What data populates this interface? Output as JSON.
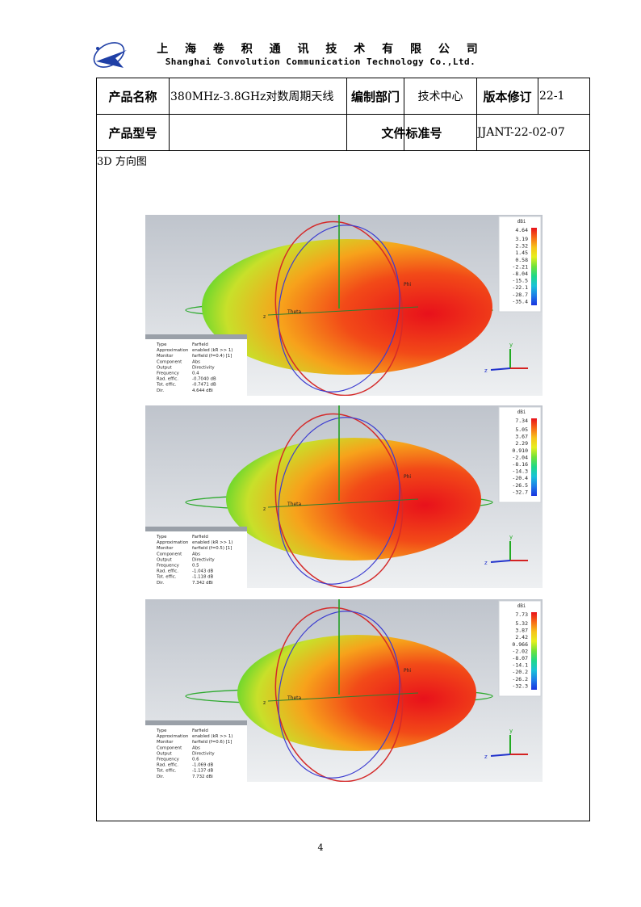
{
  "header": {
    "company_cn": "上 海 卷 积 通 讯 技 术 有 限 公 司",
    "company_en": "Shanghai Convolution Communication Technology Co.,Ltd."
  },
  "table": {
    "product_name_label": "产品名称",
    "product_name_value": "380MHz-3.8GHz对数周期天线",
    "dept_label": "编制部门",
    "dept_value": "技术中心",
    "revision_label": "版本修订",
    "revision_value": "22-1",
    "model_label": "产品型号",
    "model_value": "",
    "doc_label": "文件标准号",
    "doc_value": "JJANT-22-02-07"
  },
  "section_title": "3D 方向图",
  "panels": [
    {
      "legend_unit": "dBi",
      "legend_ticks": [
        "4.64",
        "3.19",
        "2.32",
        "1.45",
        "0.58",
        "-2.21",
        "-8.04",
        "-15.5",
        "-22.1",
        "-28.7",
        "-35.4"
      ],
      "info_labels": [
        "Type",
        "Approximation",
        "Monitor",
        "Component",
        "Output",
        "Frequency",
        "Rad. effic.",
        "Tot. effic.",
        "Dir."
      ],
      "info_values": [
        "Farfield",
        "enabled (kR >> 1)",
        "farfield (f=0.4) [1]",
        "Abs",
        "Directivity",
        "0.4",
        "-0.7040 dB",
        "-0.7471 dB",
        "4.644 dBi"
      ],
      "axis_labels": {
        "theta": "Theta",
        "phi": "Phi",
        "x": "x",
        "y": "y",
        "z": "z"
      }
    },
    {
      "legend_unit": "dBi",
      "legend_ticks": [
        "7.34",
        "5.05",
        "3.67",
        "2.29",
        "0.910",
        "-2.04",
        "-8.16",
        "-14.3",
        "-20.4",
        "-26.5",
        "-32.7"
      ],
      "info_labels": [
        "Type",
        "Approximation",
        "Monitor",
        "Component",
        "Output",
        "Frequency",
        "Rad. effic.",
        "Tot. effic.",
        "Dir."
      ],
      "info_values": [
        "Farfield",
        "enabled (kR >> 1)",
        "farfield (f=0.5) [1]",
        "Abs",
        "Directivity",
        "0.5",
        "-1.043 dB",
        "-1.118 dB",
        "7.342 dBi"
      ],
      "axis_labels": {
        "theta": "Theta",
        "phi": "Phi",
        "x": "x",
        "y": "y",
        "z": "z"
      }
    },
    {
      "legend_unit": "dBi",
      "legend_ticks": [
        "7.73",
        "5.32",
        "3.87",
        "2.42",
        "0.966",
        "-2.02",
        "-8.07",
        "-14.1",
        "-20.2",
        "-26.2",
        "-32.3"
      ],
      "info_labels": [
        "Type",
        "Approximation",
        "Monitor",
        "Component",
        "Output",
        "Frequency",
        "Rad. effic.",
        "Tot. effic.",
        "Dir."
      ],
      "info_values": [
        "Farfield",
        "enabled (kR >> 1)",
        "farfield (f=0.6) [1]",
        "Abs",
        "Directivity",
        "0.6",
        "-1.069 dB",
        "-1.137 dB",
        "7.732 dBi"
      ],
      "axis_labels": {
        "theta": "Theta",
        "phi": "Phi",
        "x": "x",
        "y": "y",
        "z": "z"
      }
    }
  ],
  "page_number": "4",
  "colors": {
    "beam_center": "#e8111b",
    "beam_mid": "#f7a21b",
    "beam_edge": "#2fd12f",
    "theta_ring": "#d42a2a",
    "phi_ring": "#3c3cd0",
    "horizon_ring": "#2eaa2e",
    "panel_bg_top": "#bfc4cc",
    "panel_bg_bottom": "#eef0f2"
  }
}
